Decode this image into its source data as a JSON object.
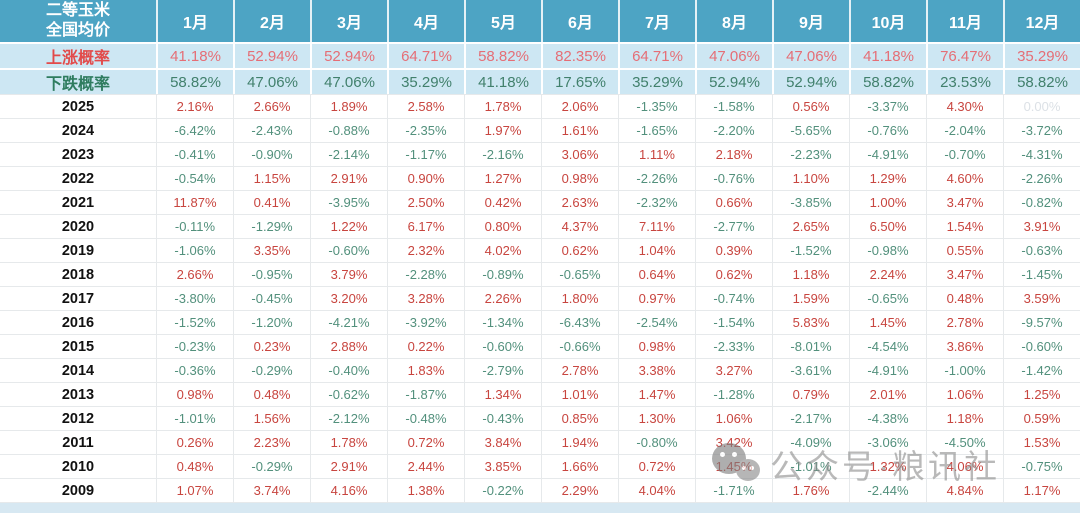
{
  "colors": {
    "header_background": "#4DA4C4",
    "probability_row_background": "#CDE7F3",
    "rise_color": "#E24A4A",
    "fall_color": "#2E7C5F",
    "positive_value_color": "#C8453F",
    "negative_value_color": "#52907C",
    "zero_value_color": "#DCE1E6",
    "bottom_strip_color": "#D7E8F2"
  },
  "chart_data": {
    "type": "table",
    "title": "二等玉米全国均价",
    "corner_label_lines": [
      "二等玉米",
      "全国均价"
    ],
    "columns": [
      "1月",
      "2月",
      "3月",
      "4月",
      "5月",
      "6月",
      "7月",
      "8月",
      "9月",
      "10月",
      "11月",
      "12月"
    ],
    "rise_row": {
      "label": "上涨概率",
      "values": [
        "41.18%",
        "52.94%",
        "52.94%",
        "64.71%",
        "58.82%",
        "82.35%",
        "64.71%",
        "47.06%",
        "47.06%",
        "41.18%",
        "76.47%",
        "35.29%"
      ]
    },
    "fall_row": {
      "label": "下跌概率",
      "values": [
        "58.82%",
        "47.06%",
        "47.06%",
        "35.29%",
        "41.18%",
        "17.65%",
        "35.29%",
        "52.94%",
        "52.94%",
        "58.82%",
        "23.53%",
        "58.82%"
      ]
    },
    "year_rows": [
      {
        "year": "2025",
        "values": [
          "2.16%",
          "2.66%",
          "1.89%",
          "2.58%",
          "1.78%",
          "2.06%",
          "-1.35%",
          "-1.58%",
          "0.56%",
          "-3.37%",
          "4.30%",
          "0.00%"
        ]
      },
      {
        "year": "2024",
        "values": [
          "-6.42%",
          "-2.43%",
          "-0.88%",
          "-2.35%",
          "1.97%",
          "1.61%",
          "-1.65%",
          "-2.20%",
          "-5.65%",
          "-0.76%",
          "-2.04%",
          "-3.72%"
        ]
      },
      {
        "year": "2023",
        "values": [
          "-0.41%",
          "-0.90%",
          "-2.14%",
          "-1.17%",
          "-2.16%",
          "3.06%",
          "1.11%",
          "2.18%",
          "-2.23%",
          "-4.91%",
          "-0.70%",
          "-4.31%"
        ]
      },
      {
        "year": "2022",
        "values": [
          "-0.54%",
          "1.15%",
          "2.91%",
          "0.90%",
          "1.27%",
          "0.98%",
          "-2.26%",
          "-0.76%",
          "1.10%",
          "1.29%",
          "4.60%",
          "-2.26%"
        ]
      },
      {
        "year": "2021",
        "values": [
          "11.87%",
          "0.41%",
          "-3.95%",
          "2.50%",
          "0.42%",
          "2.63%",
          "-2.32%",
          "0.66%",
          "-3.85%",
          "1.00%",
          "3.47%",
          "-0.82%"
        ]
      },
      {
        "year": "2020",
        "values": [
          "-0.11%",
          "-1.29%",
          "1.22%",
          "6.17%",
          "0.80%",
          "4.37%",
          "7.11%",
          "-2.77%",
          "2.65%",
          "6.50%",
          "1.54%",
          "3.91%"
        ]
      },
      {
        "year": "2019",
        "values": [
          "-1.06%",
          "3.35%",
          "-0.60%",
          "2.32%",
          "4.02%",
          "0.62%",
          "1.04%",
          "0.39%",
          "-1.52%",
          "-0.98%",
          "0.55%",
          "-0.63%"
        ]
      },
      {
        "year": "2018",
        "values": [
          "2.66%",
          "-0.95%",
          "3.79%",
          "-2.28%",
          "-0.89%",
          "-0.65%",
          "0.64%",
          "0.62%",
          "1.18%",
          "2.24%",
          "3.47%",
          "-1.45%"
        ]
      },
      {
        "year": "2017",
        "values": [
          "-3.80%",
          "-0.45%",
          "3.20%",
          "3.28%",
          "2.26%",
          "1.80%",
          "0.97%",
          "-0.74%",
          "1.59%",
          "-0.65%",
          "0.48%",
          "3.59%"
        ]
      },
      {
        "year": "2016",
        "values": [
          "-1.52%",
          "-1.20%",
          "-4.21%",
          "-3.92%",
          "-1.34%",
          "-6.43%",
          "-2.54%",
          "-1.54%",
          "5.83%",
          "1.45%",
          "2.78%",
          "-9.57%"
        ]
      },
      {
        "year": "2015",
        "values": [
          "-0.23%",
          "0.23%",
          "2.88%",
          "0.22%",
          "-0.60%",
          "-0.66%",
          "0.98%",
          "-2.33%",
          "-8.01%",
          "-4.54%",
          "3.86%",
          "-0.60%"
        ]
      },
      {
        "year": "2014",
        "values": [
          "-0.36%",
          "-0.29%",
          "-0.40%",
          "1.83%",
          "-2.79%",
          "2.78%",
          "3.38%",
          "3.27%",
          "-3.61%",
          "-4.91%",
          "-1.00%",
          "-1.42%"
        ]
      },
      {
        "year": "2013",
        "values": [
          "0.98%",
          "0.48%",
          "-0.62%",
          "-1.87%",
          "1.34%",
          "1.01%",
          "1.47%",
          "-1.28%",
          "0.79%",
          "2.01%",
          "1.06%",
          "1.25%"
        ]
      },
      {
        "year": "2012",
        "values": [
          "-1.01%",
          "1.56%",
          "-2.12%",
          "-0.48%",
          "-0.43%",
          "0.85%",
          "1.30%",
          "1.06%",
          "-2.17%",
          "-4.38%",
          "1.18%",
          "0.59%"
        ]
      },
      {
        "year": "2011",
        "values": [
          "0.26%",
          "2.23%",
          "1.78%",
          "0.72%",
          "3.84%",
          "1.94%",
          "-0.80%",
          "3.42%",
          "-4.09%",
          "-3.06%",
          "-4.50%",
          "1.53%"
        ]
      },
      {
        "year": "2010",
        "values": [
          "0.48%",
          "-0.29%",
          "2.91%",
          "2.44%",
          "3.85%",
          "1.66%",
          "0.72%",
          "1.45%",
          "-1.01%",
          "1.32%",
          "4.06%",
          "-0.75%"
        ]
      },
      {
        "year": "2009",
        "values": [
          "1.07%",
          "3.74%",
          "4.16%",
          "1.38%",
          "-0.22%",
          "2.29%",
          "4.04%",
          "-1.71%",
          "1.76%",
          "-2.44%",
          "4.84%",
          "1.17%"
        ]
      }
    ]
  },
  "watermark": {
    "icon": "wechat-icon",
    "text": "公众号·粮讯社"
  }
}
